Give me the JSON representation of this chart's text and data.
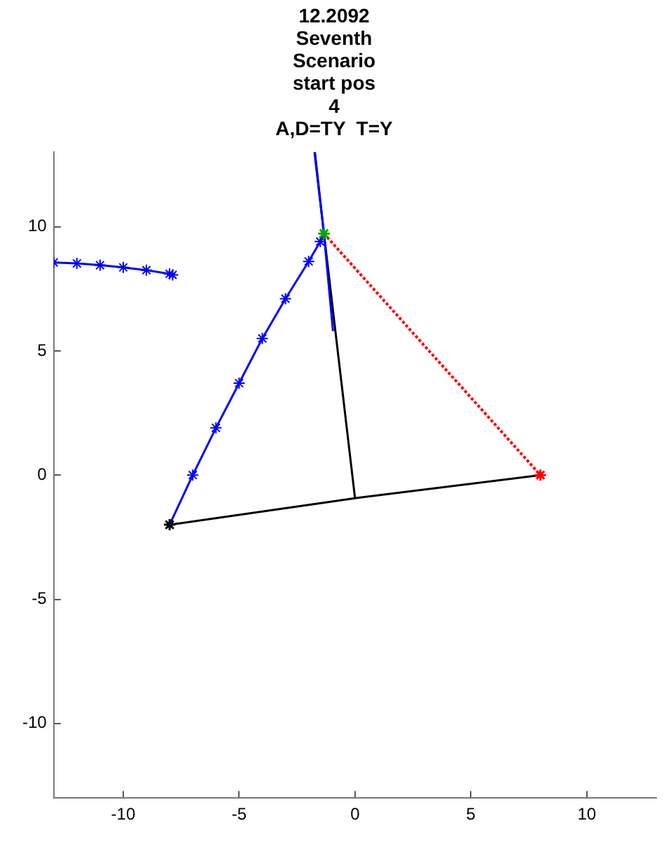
{
  "chart_data": {
    "type": "line",
    "title": "12.2092\nSeventh\nScenario\nstart pos\n4\nA,D=TY  T=Y",
    "xlim": [
      -13,
      13
    ],
    "ylim": [
      -13,
      13
    ],
    "xticks": [
      -10,
      -5,
      0,
      5,
      10
    ],
    "yticks": [
      -10,
      -5,
      0,
      5,
      10
    ],
    "series": [
      {
        "type": "line",
        "color": "#0000ff",
        "marker": "cross",
        "x": [
          -13,
          -12,
          -11,
          -10,
          -9,
          -8,
          -7.87
        ],
        "values": [
          8.56,
          8.52,
          8.45,
          8.36,
          8.25,
          8.1,
          8.06
        ]
      },
      {
        "type": "line",
        "color": "#0000ff",
        "marker": "cross",
        "x": [
          -8,
          -7,
          -6,
          -5,
          -4,
          -3,
          -2,
          -1.5,
          -1.34
        ],
        "values": [
          -2,
          0,
          1.9,
          3.7,
          5.5,
          7.1,
          8.6,
          9.4,
          9.72
        ]
      },
      {
        "type": "line",
        "color": "#0000ff",
        "marker": "none",
        "x": [
          -1.75,
          -1.34,
          -0.95
        ],
        "values": [
          13,
          9.72,
          5.8
        ]
      },
      {
        "type": "line",
        "color": "#000000",
        "marker": "none",
        "x": [
          -8,
          0,
          8
        ],
        "values": [
          -2,
          -0.93,
          0
        ]
      },
      {
        "type": "line",
        "color": "#000000",
        "marker": "none",
        "x": [
          0,
          -1.34,
          -1.73
        ],
        "values": [
          -0.93,
          9.72,
          13
        ]
      },
      {
        "type": "line",
        "color": "#ff0000",
        "line_style": "dotted",
        "x": [
          -1.34,
          8
        ],
        "values": [
          9.72,
          0
        ]
      },
      {
        "type": "scatter",
        "color": "#ff0000",
        "marker": "cross",
        "x": [
          8
        ],
        "values": [
          0
        ]
      },
      {
        "type": "scatter",
        "color": "#00aa00",
        "marker": "cross",
        "x": [
          -1.34
        ],
        "values": [
          9.72
        ]
      },
      {
        "type": "scatter",
        "color": "#000000",
        "marker": "cross",
        "x": [
          -8
        ],
        "values": [
          -2
        ]
      }
    ]
  }
}
